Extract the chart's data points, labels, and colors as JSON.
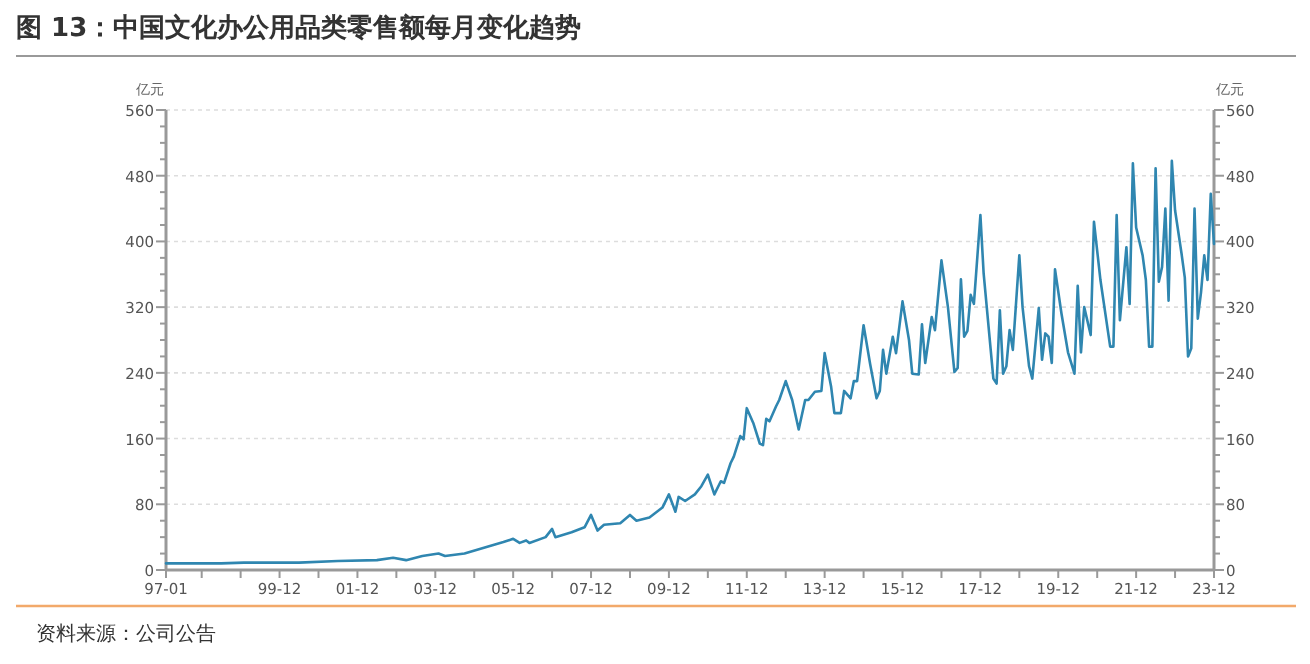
{
  "chart_data": {
    "type": "line",
    "title": "图 13：中国文化办公用品类零售额每月变化趋势",
    "ylabel": "亿元",
    "y2label": "亿元",
    "annotations": [
      "资料来源：公司公告"
    ],
    "xlim": [
      "1997-01",
      "2023-12"
    ],
    "xticks": [
      {
        "value": "1997-01",
        "label": "97-01"
      },
      {
        "value": "1997-12",
        "label": null
      },
      {
        "value": "1998-12",
        "label": null
      },
      {
        "value": "1999-12",
        "label": "99-12"
      },
      {
        "value": "2000-12",
        "label": null
      },
      {
        "value": "2001-12",
        "label": "01-12"
      },
      {
        "value": "2002-12",
        "label": null
      },
      {
        "value": "2003-12",
        "label": "03-12"
      },
      {
        "value": "2004-12",
        "label": null
      },
      {
        "value": "2005-12",
        "label": "05-12"
      },
      {
        "value": "2006-12",
        "label": null
      },
      {
        "value": "2007-12",
        "label": "07-12"
      },
      {
        "value": "2008-12",
        "label": null
      },
      {
        "value": "2009-12",
        "label": "09-12"
      },
      {
        "value": "2010-12",
        "label": null
      },
      {
        "value": "2011-12",
        "label": "11-12"
      },
      {
        "value": "2012-12",
        "label": null
      },
      {
        "value": "2013-12",
        "label": "13-12"
      },
      {
        "value": "2014-12",
        "label": null
      },
      {
        "value": "2015-12",
        "label": "15-12"
      },
      {
        "value": "2016-12",
        "label": null
      },
      {
        "value": "2017-12",
        "label": "17-12"
      },
      {
        "value": "2018-12",
        "label": null
      },
      {
        "value": "2019-12",
        "label": "19-12"
      },
      {
        "value": "2020-12",
        "label": null
      },
      {
        "value": "2021-12",
        "label": "21-12"
      },
      {
        "value": "2022-12",
        "label": null
      },
      {
        "value": "2023-12",
        "label": "23-12"
      }
    ],
    "ylim": [
      0,
      560
    ],
    "yticks": [
      0,
      {
        "value": 20,
        "label": null
      },
      {
        "value": 40,
        "label": null
      },
      {
        "value": 60,
        "label": null
      },
      80,
      {
        "value": 100,
        "label": null
      },
      {
        "value": 120,
        "label": null
      },
      {
        "value": 140,
        "label": null
      },
      160,
      {
        "value": 180,
        "label": null
      },
      {
        "value": 200,
        "label": null
      },
      {
        "value": 220,
        "label": null
      },
      240,
      {
        "value": 260,
        "label": null
      },
      {
        "value": 280,
        "label": null
      },
      {
        "value": 300,
        "label": null
      },
      320,
      {
        "value": 340,
        "label": null
      },
      {
        "value": 360,
        "label": null
      },
      {
        "value": 380,
        "label": null
      },
      400,
      {
        "value": 420,
        "label": null
      },
      {
        "value": 440,
        "label": null
      },
      {
        "value": 460,
        "label": null
      },
      480,
      {
        "value": 500,
        "label": null
      },
      {
        "value": 520,
        "label": null
      },
      {
        "value": 540,
        "label": null
      },
      560
    ],
    "y2lim": [
      0,
      560
    ],
    "y2ticks": [
      0,
      {
        "value": 20,
        "label": null
      },
      {
        "value": 40,
        "label": null
      },
      {
        "value": 60,
        "label": null
      },
      80,
      {
        "value": 100,
        "label": null
      },
      {
        "value": 120,
        "label": null
      },
      {
        "value": 140,
        "label": null
      },
      160,
      {
        "value": 180,
        "label": null
      },
      {
        "value": 200,
        "label": null
      },
      {
        "value": 220,
        "label": null
      },
      240,
      {
        "value": 260,
        "label": null
      },
      {
        "value": 280,
        "label": null
      },
      {
        "value": 300,
        "label": null
      },
      320,
      {
        "value": 340,
        "label": null
      },
      {
        "value": 360,
        "label": null
      },
      {
        "value": 380,
        "label": null
      },
      400,
      {
        "value": 420,
        "label": null
      },
      {
        "value": 440,
        "label": null
      },
      {
        "value": 460,
        "label": null
      },
      480,
      {
        "value": 500,
        "label": null
      },
      {
        "value": 520,
        "label": null
      },
      {
        "value": 540,
        "label": null
      },
      560
    ],
    "grid": "y",
    "marker": "none",
    "line_style": "solid",
    "series": [
      {
        "color": "#2f86b0",
        "x": [
          "1997-01",
          "1998-06",
          "1999-01",
          "2000-06",
          "2001-06",
          "2002-06",
          "2002-11",
          "2003-03",
          "2003-08",
          "2004-01",
          "2004-03",
          "2004-09",
          "2005-03",
          "2005-09",
          "2005-12",
          "2006-02",
          "2006-04",
          "2006-05",
          "2006-10",
          "2006-12",
          "2007-01",
          "2007-06",
          "2007-10",
          "2007-12",
          "2008-02",
          "2008-04",
          "2008-09",
          "2008-12",
          "2009-02",
          "2009-06",
          "2009-10",
          "2009-12",
          "2010-02",
          "2010-03",
          "2010-05",
          "2010-08",
          "2010-10",
          "2010-12",
          "2011-02",
          "2011-04",
          "2011-05",
          "2011-07",
          "2011-08",
          "2011-10",
          "2011-11",
          "2011-12",
          "2012-02",
          "2012-04",
          "2012-05",
          "2012-06",
          "2012-07",
          "2012-09",
          "2012-10",
          "2012-12",
          "2013-02",
          "2013-04",
          "2013-06",
          "2013-07",
          "2013-09",
          "2013-11",
          "2013-12",
          "2014-02",
          "2014-03",
          "2014-05",
          "2014-06",
          "2014-08",
          "2014-09",
          "2014-10",
          "2014-12",
          "2015-02",
          "2015-04",
          "2015-05",
          "2015-06",
          "2015-07",
          "2015-09",
          "2015-10",
          "2015-12",
          "2016-02",
          "2016-03",
          "2016-05",
          "2016-06",
          "2016-07",
          "2016-09",
          "2016-10",
          "2016-12",
          "2017-02",
          "2017-04",
          "2017-05",
          "2017-06",
          "2017-07",
          "2017-08",
          "2017-09",
          "2017-10",
          "2017-12",
          "2018-01",
          "2018-04",
          "2018-05",
          "2018-06",
          "2018-07",
          "2018-08",
          "2018-09",
          "2018-10",
          "2018-12",
          "2019-01",
          "2019-03",
          "2019-04",
          "2019-06",
          "2019-07",
          "2019-08",
          "2019-09",
          "2019-10",
          "2019-11",
          "2020-01",
          "2020-03",
          "2020-05",
          "2020-06",
          "2020-07",
          "2020-08",
          "2020-10",
          "2020-11",
          "2021-01",
          "2021-04",
          "2021-05",
          "2021-06",
          "2021-07",
          "2021-09",
          "2021-10",
          "2021-11",
          "2021-12",
          "2022-02",
          "2022-03",
          "2022-04",
          "2022-05",
          "2022-06",
          "2022-07",
          "2022-08",
          "2022-09",
          "2022-10",
          "2022-11",
          "2022-12",
          "2023-02",
          "2023-03",
          "2023-04",
          "2023-05",
          "2023-06",
          "2023-07",
          "2023-08",
          "2023-09",
          "2023-10",
          "2023-11",
          "2023-12"
        ],
        "values": [
          8,
          8,
          9,
          9,
          11,
          12,
          15,
          12,
          17,
          20,
          17,
          20,
          27,
          34,
          38,
          33,
          36,
          33,
          40,
          50,
          40,
          46,
          52,
          67,
          48,
          55,
          57,
          67,
          60,
          64,
          76,
          92,
          71,
          89,
          84,
          92,
          102,
          116,
          92,
          108,
          106,
          130,
          138,
          163,
          159,
          197,
          179,
          154,
          152,
          184,
          181,
          199,
          207,
          230,
          207,
          171,
          207,
          207,
          217,
          218,
          264,
          223,
          191,
          191,
          218,
          209,
          230,
          230,
          298,
          251,
          209,
          218,
          268,
          239,
          284,
          264,
          327,
          280,
          239,
          238,
          299,
          252,
          308,
          292,
          377,
          320,
          241,
          246,
          354,
          284,
          291,
          335,
          324,
          432,
          361,
          233,
          227,
          316,
          239,
          248,
          292,
          268,
          383,
          320,
          248,
          233,
          319,
          256,
          288,
          284,
          252,
          366,
          312,
          265,
          239,
          346,
          265,
          320,
          286,
          424,
          353,
          272,
          272,
          432,
          304,
          393,
          324,
          495,
          417,
          383,
          353,
          272,
          272,
          489,
          351,
          369,
          440,
          328,
          498,
          438,
          385,
          356,
          260,
          270,
          440,
          306,
          338,
          383,
          353,
          458,
          397
        ]
      }
    ]
  }
}
